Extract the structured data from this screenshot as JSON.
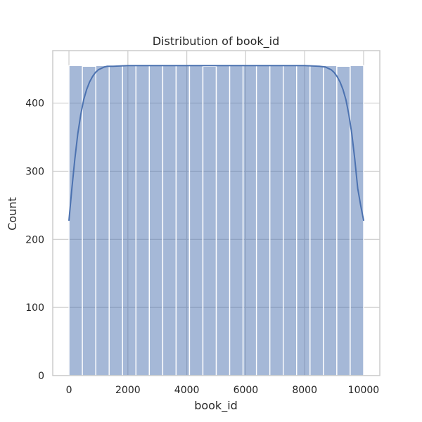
{
  "chart_data": {
    "type": "histogram",
    "title": "Distribution of book_id",
    "xlabel": "book_id",
    "ylabel": "Count",
    "xlim": [
      -550,
      10550
    ],
    "ylim": [
      0,
      477
    ],
    "xticks": [
      0,
      2000,
      4000,
      6000,
      8000,
      10000
    ],
    "yticks": [
      0,
      100,
      200,
      300,
      400
    ],
    "grid": true,
    "bar_color": "#4c72b0",
    "bar_opacity": 0.5,
    "kde_color": "#4c72b0",
    "bins": [
      {
        "x0": 1,
        "x1": 455.5,
        "count": 455
      },
      {
        "x0": 455.5,
        "x1": 910,
        "count": 454
      },
      {
        "x0": 910,
        "x1": 1364.5,
        "count": 455
      },
      {
        "x0": 1364.5,
        "x1": 1819,
        "count": 455
      },
      {
        "x0": 1819,
        "x1": 2273.5,
        "count": 455
      },
      {
        "x0": 2273.5,
        "x1": 2728,
        "count": 455
      },
      {
        "x0": 2728,
        "x1": 3182.5,
        "count": 455
      },
      {
        "x0": 3182.5,
        "x1": 3637,
        "count": 455
      },
      {
        "x0": 3637,
        "x1": 4091.5,
        "count": 455
      },
      {
        "x0": 4091.5,
        "x1": 4546,
        "count": 455
      },
      {
        "x0": 4546,
        "x1": 5000.5,
        "count": 454
      },
      {
        "x0": 5000.5,
        "x1": 5455,
        "count": 455
      },
      {
        "x0": 5455,
        "x1": 5909.5,
        "count": 455
      },
      {
        "x0": 5909.5,
        "x1": 6364,
        "count": 455
      },
      {
        "x0": 6364,
        "x1": 6818.5,
        "count": 455
      },
      {
        "x0": 6818.5,
        "x1": 7273,
        "count": 455
      },
      {
        "x0": 7273,
        "x1": 7727.5,
        "count": 455
      },
      {
        "x0": 7727.5,
        "x1": 8182,
        "count": 455
      },
      {
        "x0": 8182,
        "x1": 8636.5,
        "count": 455
      },
      {
        "x0": 8636.5,
        "x1": 9091,
        "count": 455
      },
      {
        "x0": 9091,
        "x1": 9545.5,
        "count": 454
      },
      {
        "x0": 9545.5,
        "x1": 10000,
        "count": 455
      }
    ],
    "kde": {
      "x": [
        1,
        100,
        200,
        300,
        400,
        500,
        600,
        700,
        800,
        900,
        1000,
        1100,
        1200,
        1300,
        1500,
        2000,
        3000,
        5000,
        7000,
        8000,
        8500,
        8700,
        8800,
        8900,
        9000,
        9100,
        9200,
        9300,
        9400,
        9500,
        9600,
        9700,
        9800,
        9900,
        10000
      ],
      "y": [
        228,
        275,
        318,
        355,
        383,
        405,
        420,
        431,
        439,
        445,
        449,
        451,
        453,
        454,
        454,
        455,
        455,
        455,
        455,
        455,
        454,
        453,
        451,
        449,
        445,
        439,
        431,
        420,
        405,
        383,
        355,
        318,
        275,
        250,
        228
      ]
    }
  }
}
